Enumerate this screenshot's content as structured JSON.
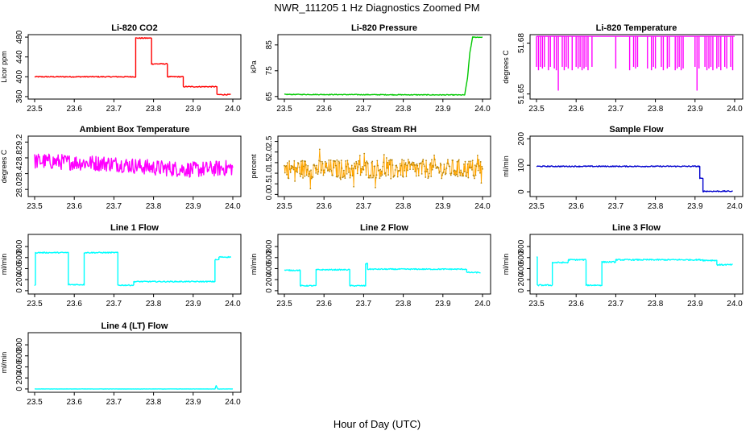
{
  "figure": {
    "title": "NWR_111205  1 Hz Diagnostics Zoomed PM",
    "xlabel": "Hour of Day (UTC)"
  },
  "chart_data": [
    {
      "type": "line",
      "title": "Li-820 CO2",
      "ylabel": "Licor ppm",
      "color": "#ff0000",
      "xlim": [
        23.5,
        24.0
      ],
      "ylim": [
        355,
        485
      ],
      "xticks": [
        "23.5",
        "23.6",
        "23.7",
        "23.8",
        "23.9",
        "24.0"
      ],
      "yticks": [
        {
          "value": 360,
          "label": "360"
        },
        {
          "value": 400,
          "label": "400"
        },
        {
          "value": 440,
          "label": "440"
        },
        {
          "value": 480,
          "label": "480"
        }
      ],
      "noise": 1,
      "segments": [
        [
          23.5,
          23.755,
          400
        ],
        [
          23.755,
          23.795,
          478
        ],
        [
          23.795,
          23.835,
          426
        ],
        [
          23.835,
          23.875,
          400
        ],
        [
          23.875,
          23.96,
          380
        ],
        [
          23.96,
          23.995,
          364
        ]
      ]
    },
    {
      "type": "line",
      "title": "Li-820 Pressure",
      "ylabel": "kPa",
      "color": "#00c800",
      "xlim": [
        23.5,
        24.0
      ],
      "ylim": [
        64,
        89
      ],
      "xticks": [
        "23.5",
        "23.6",
        "23.7",
        "23.8",
        "23.9",
        "24.0"
      ],
      "yticks": [
        {
          "value": 65,
          "label": "65"
        },
        {
          "value": 75,
          "label": "75"
        },
        {
          "value": 85,
          "label": "85"
        }
      ],
      "noise": 0.15,
      "points": [
        [
          23.5,
          65.8
        ],
        [
          23.955,
          65.6
        ],
        [
          23.962,
          72
        ],
        [
          23.968,
          82
        ],
        [
          23.975,
          88
        ],
        [
          24.0,
          88
        ]
      ]
    },
    {
      "type": "spikes",
      "title": "Li-820 Temperature",
      "ylabel": "degrees C",
      "color": "#ff00ff",
      "xlim": [
        23.5,
        24.0
      ],
      "ylim": [
        51.647,
        51.685
      ],
      "xticks": [
        "23.5",
        "23.6",
        "23.7",
        "23.8",
        "23.9",
        "24.0"
      ],
      "yticks": [
        {
          "value": 51.65,
          "label": "51.65"
        },
        {
          "value": 51.68,
          "label": "51.68"
        }
      ],
      "baseline": 51.684,
      "spikes": [
        [
          23.5,
          51.666
        ],
        [
          23.505,
          51.664
        ],
        [
          23.51,
          51.666
        ],
        [
          23.515,
          51.665
        ],
        [
          23.52,
          51.666
        ],
        [
          23.53,
          51.664
        ],
        [
          23.535,
          51.666
        ],
        [
          23.545,
          51.665
        ],
        [
          23.55,
          51.664
        ],
        [
          23.555,
          51.652
        ],
        [
          23.565,
          51.666
        ],
        [
          23.57,
          51.664
        ],
        [
          23.575,
          51.666
        ],
        [
          23.58,
          51.665
        ],
        [
          23.59,
          51.664
        ],
        [
          23.6,
          51.666
        ],
        [
          23.605,
          51.665
        ],
        [
          23.61,
          51.666
        ],
        [
          23.615,
          51.664
        ],
        [
          23.62,
          51.665
        ],
        [
          23.625,
          51.666
        ],
        [
          23.63,
          51.664
        ],
        [
          23.64,
          51.666
        ],
        [
          23.7,
          51.665
        ],
        [
          23.735,
          51.664
        ],
        [
          23.745,
          51.666
        ],
        [
          23.75,
          51.665
        ],
        [
          23.755,
          51.666
        ],
        [
          23.78,
          51.665
        ],
        [
          23.79,
          51.664
        ],
        [
          23.795,
          51.666
        ],
        [
          23.8,
          51.665
        ],
        [
          23.815,
          51.666
        ],
        [
          23.82,
          51.664
        ],
        [
          23.83,
          51.665
        ],
        [
          23.835,
          51.666
        ],
        [
          23.85,
          51.664
        ],
        [
          23.855,
          51.665
        ],
        [
          23.86,
          51.666
        ],
        [
          23.865,
          51.664
        ],
        [
          23.87,
          51.665
        ],
        [
          23.9,
          51.666
        ],
        [
          23.905,
          51.652
        ],
        [
          23.91,
          51.665
        ],
        [
          23.925,
          51.666
        ],
        [
          23.93,
          51.664
        ],
        [
          23.935,
          51.665
        ],
        [
          23.94,
          51.666
        ],
        [
          23.945,
          51.664
        ],
        [
          23.955,
          51.665
        ],
        [
          23.96,
          51.666
        ],
        [
          23.965,
          51.664
        ],
        [
          23.975,
          51.666
        ],
        [
          23.98,
          51.665
        ],
        [
          23.99,
          51.666
        ],
        [
          23.995,
          51.664
        ]
      ]
    },
    {
      "type": "line",
      "title": "Ambient Box Temperature",
      "ylabel": "degrees C",
      "color": "#ff00ff",
      "xlim": [
        23.5,
        24.0
      ],
      "ylim": [
        27.82,
        29.35
      ],
      "xticks": [
        "23.5",
        "23.6",
        "23.7",
        "23.8",
        "23.9",
        "24.0"
      ],
      "yticks": [
        {
          "value": 28.0,
          "label": "28.0"
        },
        {
          "value": 28.4,
          "label": "28.4"
        },
        {
          "value": 28.8,
          "label": "28.8"
        },
        {
          "value": 29.2,
          "label": "29.2"
        }
      ],
      "noise": 0.2,
      "points": [
        [
          23.5,
          28.72
        ],
        [
          23.7,
          28.65
        ],
        [
          23.8,
          28.55
        ],
        [
          23.9,
          28.5
        ],
        [
          24.0,
          28.55
        ]
      ]
    },
    {
      "type": "line",
      "title": "Gas Stream RH",
      "ylabel": "percent",
      "color": "#ffa500",
      "marker": "dots",
      "xlim": [
        23.5,
        24.0
      ],
      "ylim": [
        -0.1,
        2.75
      ],
      "xticks": [
        "23.5",
        "23.6",
        "23.7",
        "23.8",
        "23.9",
        "24.0"
      ],
      "yticks": [
        {
          "value": 0.0,
          "label": "0.0"
        },
        {
          "value": 0.5,
          "label": "0.5"
        },
        {
          "value": 1.0,
          "label": "1.0"
        },
        {
          "value": 1.5,
          "label": "1.5"
        },
        {
          "value": 2.0,
          "label": "2.0"
        },
        {
          "value": 2.5,
          "label": "2.5"
        }
      ],
      "noise": 0.45,
      "points": [
        [
          23.5,
          1.2
        ],
        [
          24.0,
          1.2
        ]
      ]
    },
    {
      "type": "line",
      "title": "Sample Flow",
      "ylabel": "ml/min",
      "color": "#0000cd",
      "xlim": [
        23.5,
        24.0
      ],
      "ylim": [
        -18,
        210
      ],
      "xticks": [
        "23.5",
        "23.6",
        "23.7",
        "23.8",
        "23.9",
        "24.0"
      ],
      "yticks": [
        {
          "value": 0,
          "label": "0"
        },
        {
          "value": 100,
          "label": "100"
        },
        {
          "value": 200,
          "label": "200"
        }
      ],
      "noise": 2,
      "segments": [
        [
          23.5,
          23.912,
          96
        ],
        [
          23.912,
          23.92,
          50
        ],
        [
          23.92,
          23.995,
          2
        ]
      ]
    },
    {
      "type": "line",
      "title": "Line 1 Flow",
      "ylabel": "ml/min",
      "color": "#00ffff",
      "xlim": [
        23.5,
        24.0
      ],
      "ylim": [
        -60,
        1020
      ],
      "xticks": [
        "23.5",
        "23.6",
        "23.7",
        "23.8",
        "23.9",
        "24.0"
      ],
      "yticks": [
        {
          "value": 0,
          "label": "0"
        },
        {
          "value": 200,
          "label": "200"
        },
        {
          "value": 400,
          "label": "400"
        },
        {
          "value": 600,
          "label": "600"
        },
        {
          "value": 800,
          "label": "800"
        }
      ],
      "noise": 10,
      "segments": [
        [
          23.5,
          23.502,
          100
        ],
        [
          23.502,
          23.585,
          690
        ],
        [
          23.585,
          23.625,
          110
        ],
        [
          23.625,
          23.71,
          690
        ],
        [
          23.71,
          23.75,
          100
        ],
        [
          23.75,
          23.955,
          165
        ],
        [
          23.955,
          23.965,
          560
        ],
        [
          23.965,
          23.995,
          610
        ]
      ]
    },
    {
      "type": "line",
      "title": "Line 2 Flow",
      "ylabel": "ml/min",
      "color": "#00ffff",
      "xlim": [
        23.5,
        24.0
      ],
      "ylim": [
        -60,
        1020
      ],
      "xticks": [
        "23.5",
        "23.6",
        "23.7",
        "23.8",
        "23.9",
        "24.0"
      ],
      "yticks": [
        {
          "value": 0,
          "label": "0"
        },
        {
          "value": 200,
          "label": "200"
        },
        {
          "value": 400,
          "label": "400"
        },
        {
          "value": 600,
          "label": "600"
        },
        {
          "value": 800,
          "label": "800"
        }
      ],
      "noise": 10,
      "segments": [
        [
          23.5,
          23.54,
          370
        ],
        [
          23.54,
          23.58,
          90
        ],
        [
          23.58,
          23.665,
          380
        ],
        [
          23.665,
          23.705,
          90
        ],
        [
          23.705,
          23.71,
          490
        ],
        [
          23.71,
          23.96,
          390
        ],
        [
          23.96,
          23.995,
          330
        ]
      ]
    },
    {
      "type": "line",
      "title": "Line 3 Flow",
      "ylabel": "ml/min",
      "color": "#00ffff",
      "xlim": [
        23.5,
        24.0
      ],
      "ylim": [
        -60,
        1020
      ],
      "xticks": [
        "23.5",
        "23.6",
        "23.7",
        "23.8",
        "23.9",
        "24.0"
      ],
      "yticks": [
        {
          "value": 0,
          "label": "0"
        },
        {
          "value": 200,
          "label": "200"
        },
        {
          "value": 400,
          "label": "400"
        },
        {
          "value": 600,
          "label": "600"
        },
        {
          "value": 800,
          "label": "800"
        }
      ],
      "noise": 12,
      "segments": [
        [
          23.5,
          23.502,
          600
        ],
        [
          23.502,
          23.54,
          100
        ],
        [
          23.54,
          23.58,
          510
        ],
        [
          23.58,
          23.625,
          560
        ],
        [
          23.625,
          23.665,
          100
        ],
        [
          23.665,
          23.7,
          520
        ],
        [
          23.7,
          23.92,
          560
        ],
        [
          23.92,
          23.955,
          550
        ],
        [
          23.955,
          23.995,
          470
        ]
      ]
    },
    {
      "type": "line",
      "title": "Line 4 (LT) Flow",
      "ylabel": "ml/min",
      "color": "#00ffff",
      "xlim": [
        23.5,
        24.0
      ],
      "ylim": [
        -60,
        1020
      ],
      "xticks": [
        "23.5",
        "23.6",
        "23.7",
        "23.8",
        "23.9",
        "24.0"
      ],
      "yticks": [
        {
          "value": 0,
          "label": "0"
        },
        {
          "value": 200,
          "label": "200"
        },
        {
          "value": 400,
          "label": "400"
        },
        {
          "value": 600,
          "label": "600"
        },
        {
          "value": 800,
          "label": "800"
        }
      ],
      "noise": 2,
      "points": [
        [
          23.5,
          0
        ],
        [
          23.955,
          0
        ],
        [
          23.958,
          60
        ],
        [
          23.962,
          0
        ],
        [
          24.0,
          0
        ]
      ]
    }
  ]
}
